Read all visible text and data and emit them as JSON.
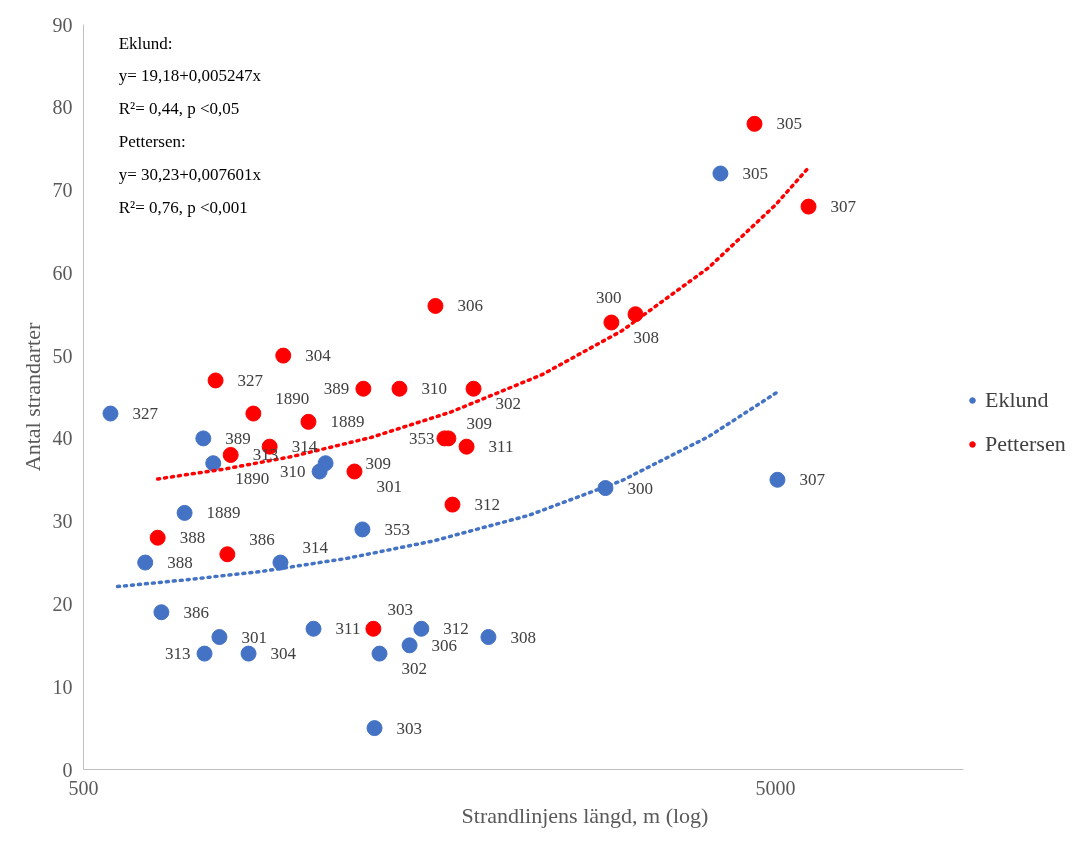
{
  "chart_data": {
    "type": "scatter",
    "xlabel": "Strandlinjens längd, m (log)",
    "ylabel": "Antal strandarter",
    "log": "x",
    "xlim": [
      500,
      9350
    ],
    "xticks": [
      500,
      5000
    ],
    "ylim": [
      0,
      90
    ],
    "yticks": [
      0,
      10,
      20,
      30,
      40,
      50,
      60,
      70,
      80,
      90
    ],
    "grid": false,
    "legend": "right",
    "marker": "circle",
    "annotations": [
      "Eklund:",
      "y=  19,18+0,005247x",
      "R²= 0,44, p <0,05",
      "Pettersen:",
      "y=  30,23+0,007601x",
      "R²= 0,76, p <0,001",
      {
        "text": "327",
        "x": 547,
        "y": 43
      },
      {
        "text": "389",
        "x": 745,
        "y": 40
      },
      {
        "text": "1890",
        "x": 770,
        "y": 37
      },
      {
        "text": "1889",
        "x": 700,
        "y": 31
      },
      {
        "text": "388",
        "x": 614,
        "y": 25
      },
      {
        "text": "386",
        "x": 648,
        "y": 19
      },
      {
        "text": "301",
        "x": 786,
        "y": 16
      },
      {
        "text": "313",
        "x": 748,
        "y": 14
      },
      {
        "text": "304",
        "x": 866,
        "y": 14
      },
      {
        "text": "314",
        "x": 963,
        "y": 25
      },
      {
        "text": "310",
        "x": 1097,
        "y": 36
      },
      {
        "text": "309",
        "x": 1119,
        "y": 37
      },
      {
        "text": "353",
        "x": 1265,
        "y": 29
      },
      {
        "text": "311",
        "x": 1075,
        "y": 17
      },
      {
        "text": "303",
        "x": 1317,
        "y": 5
      },
      {
        "text": "302",
        "x": 1339,
        "y": 14
      },
      {
        "text": "306",
        "x": 1480,
        "y": 15
      },
      {
        "text": "312",
        "x": 1539,
        "y": 17
      },
      {
        "text": "308",
        "x": 1924,
        "y": 16
      },
      {
        "text": "300",
        "x": 2840,
        "y": 34
      },
      {
        "text": "305",
        "x": 4164,
        "y": 72
      },
      {
        "text": "307",
        "x": 5034,
        "y": 35
      },
      {
        "text": "388",
        "x": 640,
        "y": 28
      },
      {
        "text": "327",
        "x": 776,
        "y": 47
      },
      {
        "text": "313",
        "x": 816,
        "y": 38
      },
      {
        "text": "386",
        "x": 807,
        "y": 26
      },
      {
        "text": "1890",
        "x": 880,
        "y": 43
      },
      {
        "text": "314",
        "x": 929,
        "y": 39
      },
      {
        "text": "304",
        "x": 972,
        "y": 50
      },
      {
        "text": "1889",
        "x": 1057,
        "y": 42
      },
      {
        "text": "301",
        "x": 1232,
        "y": 36
      },
      {
        "text": "389",
        "x": 1269,
        "y": 46
      },
      {
        "text": "310",
        "x": 1431,
        "y": 46
      },
      {
        "text": "306",
        "x": 1613,
        "y": 56
      },
      {
        "text": "302",
        "x": 1831,
        "y": 46
      },
      {
        "text": "309",
        "x": 1662,
        "y": 40
      },
      {
        "text": "353",
        "x": 1684,
        "y": 40
      },
      {
        "text": "311",
        "x": 1789,
        "y": 39
      },
      {
        "text": "312",
        "x": 1707,
        "y": 32
      },
      {
        "text": "303",
        "x": 1312,
        "y": 17
      },
      {
        "text": "308",
        "x": 2897,
        "y": 54
      },
      {
        "text": "300",
        "x": 3139,
        "y": 55
      },
      {
        "text": "305",
        "x": 4664,
        "y": 78
      },
      {
        "text": "307",
        "x": 5583,
        "y": 68
      }
    ],
    "series": [
      {
        "name": "Eklund",
        "color": "#4472c4",
        "x": [
          547,
          745,
          770,
          700,
          614,
          648,
          786,
          748,
          866,
          963,
          1097,
          1119,
          1265,
          1075,
          1317,
          1339,
          1480,
          1539,
          1924,
          2840,
          4164,
          5034
        ],
        "values": [
          43,
          40,
          37,
          31,
          25,
          19,
          16,
          14,
          14,
          25,
          36,
          37,
          29,
          17,
          5,
          14,
          15,
          17,
          16,
          34,
          72,
          35
        ]
      },
      {
        "name": "Pettersen",
        "color": "#ff0000",
        "x": [
          640,
          776,
          816,
          807,
          880,
          929,
          972,
          1057,
          1232,
          1269,
          1431,
          1613,
          1831,
          1662,
          1684,
          1789,
          1707,
          1312,
          2897,
          3139,
          4664,
          5583
        ],
        "values": [
          28,
          47,
          38,
          26,
          43,
          39,
          50,
          42,
          36,
          46,
          46,
          56,
          46,
          40,
          40,
          39,
          32,
          17,
          54,
          55,
          78,
          68
        ]
      },
      {
        "type": "line",
        "marker": "none",
        "line_style": "dotted",
        "color": "#4472c4",
        "x": [
          560,
          700,
          900,
          1200,
          1600,
          2200,
          3000,
          4000,
          5034
        ],
        "values": [
          22.1,
          22.9,
          23.9,
          25.5,
          27.6,
          30.7,
          34.9,
          40.2,
          45.6
        ]
      },
      {
        "type": "line",
        "marker": "none",
        "line_style": "dotted",
        "color": "#ff0000",
        "x": [
          640,
          800,
          1000,
          1300,
          1700,
          2300,
          3000,
          4000,
          5000,
          5583
        ],
        "values": [
          35.1,
          36.3,
          37.8,
          40.1,
          43.2,
          47.7,
          53.0,
          60.6,
          68.2,
          72.7
        ]
      }
    ]
  }
}
